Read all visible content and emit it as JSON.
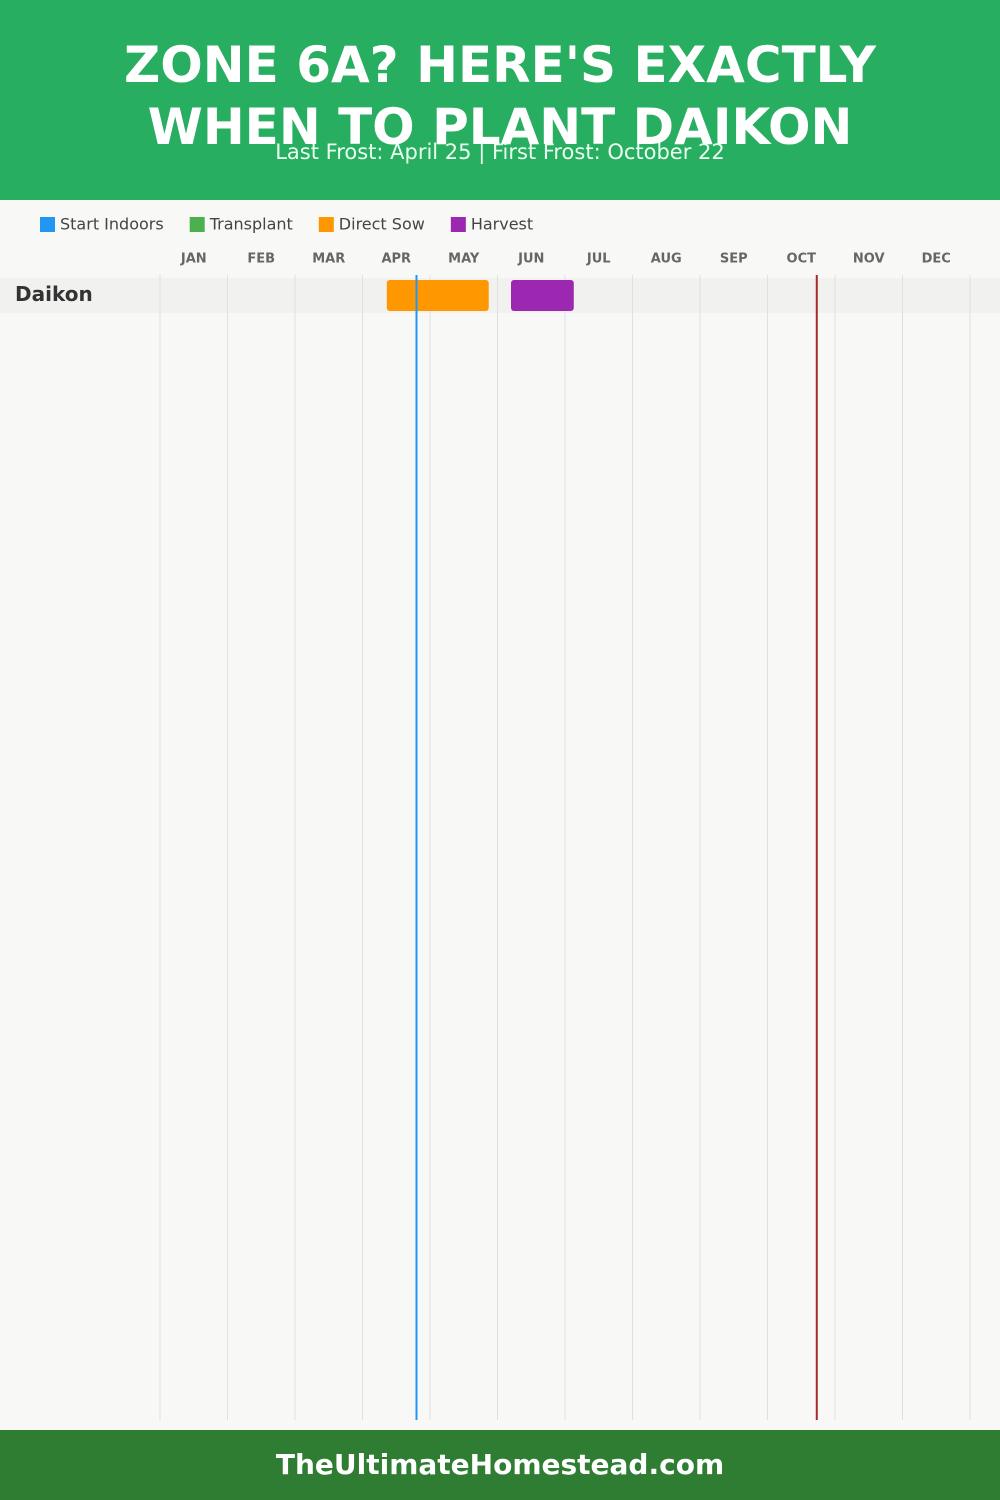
{
  "chart_data": {
    "type": "gantt",
    "title": "ZONE 6A? HERE'S EXACTLY WHEN TO PLANT DAIKON",
    "subtitle": "Last Frost: April 25 | First Frost: October 22",
    "categories": [
      "JAN",
      "FEB",
      "MAR",
      "APR",
      "MAY",
      "JUN",
      "JUL",
      "AUG",
      "SEP",
      "OCT",
      "NOV",
      "DEC"
    ],
    "xlim": [
      0,
      12
    ],
    "rows": [
      "Daikon"
    ],
    "series": [
      {
        "name": "Start Indoors",
        "color": "#2196f3",
        "ranges": []
      },
      {
        "name": "Transplant",
        "color": "#4caf50",
        "ranges": []
      },
      {
        "name": "Direct Sow",
        "color": "#ff9800",
        "ranges": [
          [
            3.36,
            4.87
          ]
        ]
      },
      {
        "name": "Harvest",
        "color": "#9c27b0",
        "ranges": [
          [
            5.2,
            6.13
          ]
        ]
      }
    ],
    "frost_lines": [
      {
        "value": 3.8,
        "color": "#2196f3"
      },
      {
        "value": 9.73,
        "color": "#a52a2a"
      }
    ]
  },
  "footer": "TheUltimateHomestead.com"
}
